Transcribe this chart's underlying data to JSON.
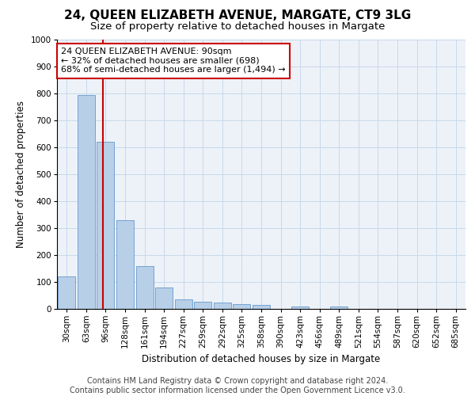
{
  "title": "24, QUEEN ELIZABETH AVENUE, MARGATE, CT9 3LG",
  "subtitle": "Size of property relative to detached houses in Margate",
  "xlabel": "Distribution of detached houses by size in Margate",
  "ylabel": "Number of detached properties",
  "categories": [
    "30sqm",
    "63sqm",
    "96sqm",
    "128sqm",
    "161sqm",
    "194sqm",
    "227sqm",
    "259sqm",
    "292sqm",
    "325sqm",
    "358sqm",
    "390sqm",
    "423sqm",
    "456sqm",
    "489sqm",
    "521sqm",
    "554sqm",
    "587sqm",
    "620sqm",
    "652sqm",
    "685sqm"
  ],
  "values": [
    120,
    795,
    620,
    328,
    158,
    78,
    35,
    27,
    25,
    18,
    15,
    0,
    10,
    0,
    8,
    0,
    0,
    0,
    0,
    0,
    0
  ],
  "bar_color": "#b8cfe8",
  "bar_edge_color": "#6699cc",
  "vline_color": "#cc0000",
  "vline_pos": 1.85,
  "annotation_text": "24 QUEEN ELIZABETH AVENUE: 90sqm\n← 32% of detached houses are smaller (698)\n68% of semi-detached houses are larger (1,494) →",
  "annotation_box_facecolor": "#ffffff",
  "annotation_box_edgecolor": "#cc0000",
  "ylim": [
    0,
    1000
  ],
  "yticks": [
    0,
    100,
    200,
    300,
    400,
    500,
    600,
    700,
    800,
    900,
    1000
  ],
  "grid_color": "#c8d8ea",
  "background_color": "#edf2f8",
  "footer_text": "Contains HM Land Registry data © Crown copyright and database right 2024.\nContains public sector information licensed under the Open Government Licence v3.0.",
  "title_fontsize": 11,
  "subtitle_fontsize": 9.5,
  "ylabel_fontsize": 8.5,
  "xlabel_fontsize": 8.5,
  "tick_fontsize": 7.5,
  "annotation_fontsize": 8,
  "footer_fontsize": 7
}
